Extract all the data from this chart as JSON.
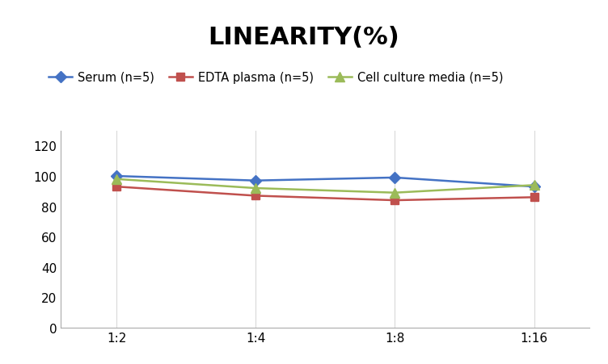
{
  "title": "LINEARITY(%)",
  "title_fontsize": 22,
  "title_fontweight": "bold",
  "x_labels": [
    "1:2",
    "1:4",
    "1:8",
    "1:16"
  ],
  "x_positions": [
    0,
    1,
    2,
    3
  ],
  "series": [
    {
      "label": "Serum (n=5)",
      "values": [
        100,
        97,
        99,
        93
      ],
      "color": "#4472C4",
      "marker": "D",
      "markersize": 7,
      "linewidth": 1.8
    },
    {
      "label": "EDTA plasma (n=5)",
      "values": [
        93,
        87,
        84,
        86
      ],
      "color": "#C0504D",
      "marker": "s",
      "markersize": 7,
      "linewidth": 1.8
    },
    {
      "label": "Cell culture media (n=5)",
      "values": [
        98,
        92,
        89,
        94
      ],
      "color": "#9BBB59",
      "marker": "^",
      "markersize": 8,
      "linewidth": 1.8
    }
  ],
  "ylim": [
    0,
    130
  ],
  "yticks": [
    0,
    20,
    40,
    60,
    80,
    100,
    120
  ],
  "xlim": [
    -0.4,
    3.4
  ],
  "grid_color": "#D9D9D9",
  "background_color": "#FFFFFF",
  "tick_fontsize": 11,
  "legend_fontsize": 10.5,
  "spine_color": "#AAAAAA"
}
